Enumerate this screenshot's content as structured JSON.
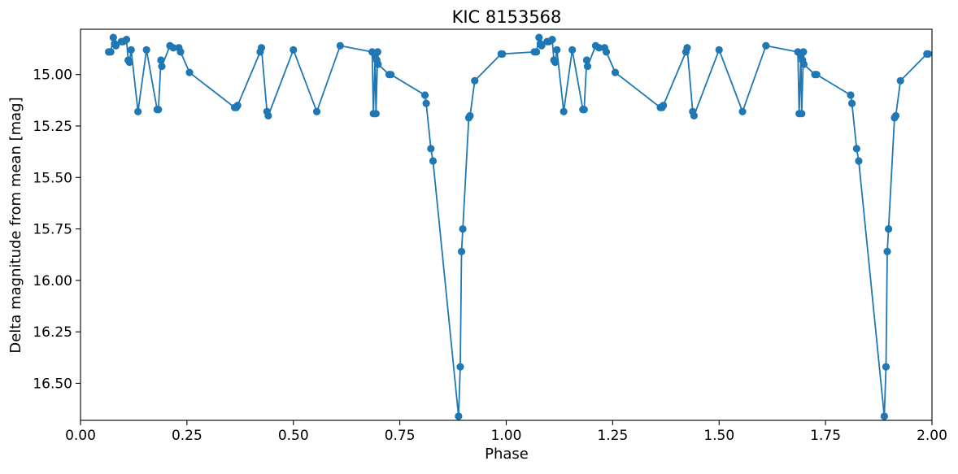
{
  "chart_data": {
    "type": "line",
    "title": "KIC 8153568",
    "xlabel": "Phase",
    "ylabel": "Delta magnitude from mean [mag]",
    "xlim": [
      0.0,
      2.0
    ],
    "ylim": [
      16.68,
      14.78
    ],
    "y_inverted": true,
    "grid": false,
    "x_ticks": [
      0.0,
      0.25,
      0.5,
      0.75,
      1.0,
      1.25,
      1.5,
      1.75,
      2.0
    ],
    "x_tick_labels": [
      "0.00",
      "0.25",
      "0.50",
      "0.75",
      "1.00",
      "1.25",
      "1.50",
      "1.75",
      "2.00"
    ],
    "y_ticks": [
      15.0,
      15.25,
      15.5,
      15.75,
      16.0,
      16.25,
      16.5
    ],
    "y_tick_labels": [
      "15.00",
      "15.25",
      "15.50",
      "15.75",
      "16.00",
      "16.25",
      "16.50"
    ],
    "series": [
      {
        "color": "#1f77b4",
        "marker": "circle",
        "points": [
          [
            0.066,
            14.89
          ],
          [
            0.071,
            14.89
          ],
          [
            0.077,
            14.82
          ],
          [
            0.08,
            14.85
          ],
          [
            0.083,
            14.86
          ],
          [
            0.096,
            14.84
          ],
          [
            0.1,
            14.84
          ],
          [
            0.108,
            14.83
          ],
          [
            0.112,
            14.93
          ],
          [
            0.115,
            14.94
          ],
          [
            0.119,
            14.88
          ],
          [
            0.135,
            15.18
          ],
          [
            0.155,
            14.88
          ],
          [
            0.18,
            15.17
          ],
          [
            0.183,
            15.17
          ],
          [
            0.189,
            14.93
          ],
          [
            0.191,
            14.96
          ],
          [
            0.21,
            14.86
          ],
          [
            0.218,
            14.87
          ],
          [
            0.231,
            14.87
          ],
          [
            0.235,
            14.89
          ],
          [
            0.256,
            14.99
          ],
          [
            0.362,
            15.16
          ],
          [
            0.366,
            15.16
          ],
          [
            0.369,
            15.15
          ],
          [
            0.422,
            14.89
          ],
          [
            0.425,
            14.87
          ],
          [
            0.438,
            15.18
          ],
          [
            0.441,
            15.2
          ],
          [
            0.5,
            14.88
          ],
          [
            0.555,
            15.18
          ],
          [
            0.61,
            14.86
          ],
          [
            0.685,
            14.89
          ],
          [
            0.688,
            15.19
          ],
          [
            0.692,
            14.91
          ],
          [
            0.694,
            15.19
          ],
          [
            0.698,
            14.89
          ],
          [
            0.696,
            14.93
          ],
          [
            0.699,
            14.95
          ],
          [
            0.725,
            15.0
          ],
          [
            0.729,
            15.0
          ],
          [
            0.809,
            15.1
          ],
          [
            0.812,
            15.14
          ],
          [
            0.823,
            15.36
          ],
          [
            0.828,
            15.42
          ],
          [
            0.888,
            16.66
          ],
          [
            0.892,
            16.42
          ],
          [
            0.895,
            15.86
          ],
          [
            0.898,
            15.75
          ],
          [
            0.912,
            15.21
          ],
          [
            0.915,
            15.2
          ],
          [
            0.926,
            15.03
          ],
          [
            0.988,
            14.9
          ],
          [
            0.991,
            14.9
          ],
          [
            1.066,
            14.89
          ],
          [
            1.071,
            14.89
          ],
          [
            1.077,
            14.82
          ],
          [
            1.08,
            14.85
          ],
          [
            1.083,
            14.86
          ],
          [
            1.096,
            14.84
          ],
          [
            1.1,
            14.84
          ],
          [
            1.108,
            14.83
          ],
          [
            1.112,
            14.93
          ],
          [
            1.115,
            14.94
          ],
          [
            1.119,
            14.88
          ],
          [
            1.135,
            15.18
          ],
          [
            1.155,
            14.88
          ],
          [
            1.18,
            15.17
          ],
          [
            1.183,
            15.17
          ],
          [
            1.189,
            14.93
          ],
          [
            1.191,
            14.96
          ],
          [
            1.21,
            14.86
          ],
          [
            1.218,
            14.87
          ],
          [
            1.231,
            14.87
          ],
          [
            1.235,
            14.89
          ],
          [
            1.256,
            14.99
          ],
          [
            1.362,
            15.16
          ],
          [
            1.366,
            15.16
          ],
          [
            1.369,
            15.15
          ],
          [
            1.422,
            14.89
          ],
          [
            1.425,
            14.87
          ],
          [
            1.438,
            15.18
          ],
          [
            1.441,
            15.2
          ],
          [
            1.5,
            14.88
          ],
          [
            1.555,
            15.18
          ],
          [
            1.61,
            14.86
          ],
          [
            1.685,
            14.89
          ],
          [
            1.688,
            15.19
          ],
          [
            1.692,
            14.91
          ],
          [
            1.694,
            15.19
          ],
          [
            1.698,
            14.89
          ],
          [
            1.696,
            14.93
          ],
          [
            1.699,
            14.95
          ],
          [
            1.725,
            15.0
          ],
          [
            1.729,
            15.0
          ],
          [
            1.809,
            15.1
          ],
          [
            1.812,
            15.14
          ],
          [
            1.823,
            15.36
          ],
          [
            1.828,
            15.42
          ],
          [
            1.888,
            16.66
          ],
          [
            1.892,
            16.42
          ],
          [
            1.895,
            15.86
          ],
          [
            1.898,
            15.75
          ],
          [
            1.912,
            15.21
          ],
          [
            1.915,
            15.2
          ],
          [
            1.926,
            15.03
          ],
          [
            1.988,
            14.9
          ],
          [
            1.991,
            14.9
          ]
        ]
      }
    ]
  }
}
